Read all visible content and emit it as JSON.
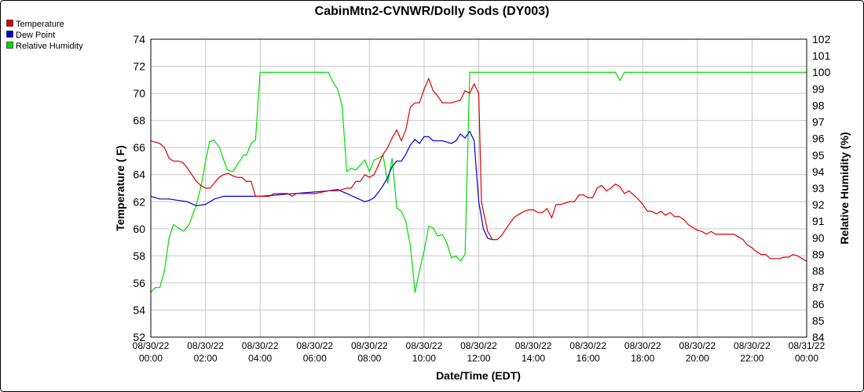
{
  "chart_data": {
    "type": "line",
    "title": "CabinMtn2-CVNWR/Dolly Sods (DY003)",
    "xlabel": "Date/Time (EDT)",
    "ylabel": "Temperature ( F)",
    "ylabel_right": "Relative Humidity (%)",
    "ylim": [
      52,
      74
    ],
    "ylim_right": [
      84,
      102
    ],
    "xlim_hours": [
      0,
      24
    ],
    "grid": true,
    "legend_position": "top-left",
    "yticks": [
      "52",
      "54",
      "56",
      "58",
      "60",
      "62",
      "64",
      "66",
      "68",
      "70",
      "72",
      "74"
    ],
    "yticks_right": [
      "84",
      "85",
      "86",
      "87",
      "88",
      "89",
      "90",
      "91",
      "92",
      "93",
      "94",
      "95",
      "96",
      "97",
      "98",
      "99",
      "100",
      "101",
      "102"
    ],
    "xticks": [
      {
        "hour": 0,
        "date": "08/30/22",
        "time": "00:00"
      },
      {
        "hour": 2,
        "date": "08/30/22",
        "time": "02:00"
      },
      {
        "hour": 4,
        "date": "08/30/22",
        "time": "04:00"
      },
      {
        "hour": 6,
        "date": "08/30/22",
        "time": "06:00"
      },
      {
        "hour": 8,
        "date": "08/30/22",
        "time": "08:00"
      },
      {
        "hour": 10,
        "date": "08/30/22",
        "time": "10:00"
      },
      {
        "hour": 12,
        "date": "08/30/22",
        "time": "12:00"
      },
      {
        "hour": 14,
        "date": "08/30/22",
        "time": "14:00"
      },
      {
        "hour": 16,
        "date": "08/30/22",
        "time": "16:00"
      },
      {
        "hour": 18,
        "date": "08/30/22",
        "time": "18:00"
      },
      {
        "hour": 20,
        "date": "08/30/22",
        "time": "20:00"
      },
      {
        "hour": 22,
        "date": "08/30/22",
        "time": "22:00"
      },
      {
        "hour": 24,
        "date": "08/31/22",
        "time": "00:00"
      }
    ],
    "series": [
      {
        "name": "Relative Humidity",
        "color": "#00dd00",
        "axis": "right",
        "points": [
          [
            0,
            86.7
          ],
          [
            0.17,
            87
          ],
          [
            0.33,
            87
          ],
          [
            0.5,
            88
          ],
          [
            0.67,
            90
          ],
          [
            0.83,
            90.8
          ],
          [
            1,
            90.6
          ],
          [
            1.2,
            90.4
          ],
          [
            1.4,
            90.8
          ],
          [
            1.67,
            92
          ],
          [
            1.85,
            93.2
          ],
          [
            2,
            94.6
          ],
          [
            2.15,
            95.8
          ],
          [
            2.3,
            95.9
          ],
          [
            2.5,
            95.5
          ],
          [
            2.67,
            94.7
          ],
          [
            2.8,
            94.1
          ],
          [
            3,
            94.0
          ],
          [
            3.2,
            94.5
          ],
          [
            3.4,
            95.0
          ],
          [
            3.5,
            95.0
          ],
          [
            3.67,
            95.7
          ],
          [
            3.83,
            95.9
          ],
          [
            4,
            100
          ],
          [
            6.5,
            100
          ],
          [
            6.67,
            99.4
          ],
          [
            6.83,
            99.0
          ],
          [
            7.0,
            98.0
          ],
          [
            7.17,
            94.0
          ],
          [
            7.33,
            94.2
          ],
          [
            7.5,
            94.1
          ],
          [
            7.67,
            94.4
          ],
          [
            7.83,
            94.7
          ],
          [
            8.0,
            94.0
          ],
          [
            8.17,
            94.7
          ],
          [
            8.33,
            94.8
          ],
          [
            8.5,
            95.0
          ],
          [
            8.67,
            93.3
          ],
          [
            8.83,
            94.8
          ],
          [
            9.0,
            91.8
          ],
          [
            9.17,
            91.6
          ],
          [
            9.33,
            91.0
          ],
          [
            9.5,
            89.5
          ],
          [
            9.67,
            86.7
          ],
          [
            9.83,
            88
          ],
          [
            10.0,
            89.2
          ],
          [
            10.17,
            90.7
          ],
          [
            10.33,
            90.6
          ],
          [
            10.5,
            90.1
          ],
          [
            10.67,
            90.2
          ],
          [
            10.83,
            89.7
          ],
          [
            11.0,
            88.8
          ],
          [
            11.17,
            88.9
          ],
          [
            11.33,
            88.6
          ],
          [
            11.5,
            89
          ],
          [
            11.67,
            100
          ],
          [
            17.0,
            100
          ],
          [
            17.17,
            99.5
          ],
          [
            17.33,
            100
          ],
          [
            24,
            100
          ]
        ]
      },
      {
        "name": "Dew Point",
        "color": "#0000dd",
        "axis": "left",
        "points": [
          [
            0,
            62.4
          ],
          [
            0.33,
            62.2
          ],
          [
            0.67,
            62.2
          ],
          [
            1,
            62.1
          ],
          [
            1.33,
            62.0
          ],
          [
            1.67,
            61.7
          ],
          [
            2,
            61.8
          ],
          [
            2.33,
            62.2
          ],
          [
            2.67,
            62.4
          ],
          [
            3,
            62.4
          ],
          [
            3.33,
            62.4
          ],
          [
            3.67,
            62.4
          ],
          [
            4,
            62.4
          ],
          [
            6.5,
            62.8
          ],
          [
            6.83,
            62.9
          ],
          [
            7.17,
            62.6
          ],
          [
            7.5,
            62.3
          ],
          [
            7.83,
            62.0
          ],
          [
            8.0,
            62.1
          ],
          [
            8.17,
            62.3
          ],
          [
            8.33,
            62.7
          ],
          [
            8.5,
            63.2
          ],
          [
            8.67,
            63.8
          ],
          [
            8.83,
            64.6
          ],
          [
            9.0,
            65.0
          ],
          [
            9.17,
            65.0
          ],
          [
            9.33,
            65.5
          ],
          [
            9.5,
            66.2
          ],
          [
            9.67,
            66.6
          ],
          [
            9.83,
            66.3
          ],
          [
            10.0,
            66.8
          ],
          [
            10.17,
            66.8
          ],
          [
            10.33,
            66.5
          ],
          [
            10.67,
            66.5
          ],
          [
            11.0,
            66.3
          ],
          [
            11.17,
            66.5
          ],
          [
            11.33,
            67.0
          ],
          [
            11.5,
            66.7
          ],
          [
            11.67,
            67.2
          ],
          [
            11.83,
            66.5
          ],
          [
            12.0,
            62.0
          ],
          [
            12.17,
            60.0
          ],
          [
            12.33,
            59.3
          ],
          [
            12.5,
            59.2
          ]
        ]
      },
      {
        "name": "Temperature",
        "color": "#dd0000",
        "axis": "left",
        "points": [
          [
            0,
            66.5
          ],
          [
            0.33,
            66.3
          ],
          [
            0.5,
            66.0
          ],
          [
            0.67,
            65.2
          ],
          [
            0.83,
            65.0
          ],
          [
            1,
            65.0
          ],
          [
            1.17,
            64.9
          ],
          [
            1.33,
            64.5
          ],
          [
            1.5,
            64.0
          ],
          [
            1.67,
            63.5
          ],
          [
            1.83,
            63.2
          ],
          [
            2,
            63.0
          ],
          [
            2.17,
            63.0
          ],
          [
            2.33,
            63.4
          ],
          [
            2.5,
            63.8
          ],
          [
            2.67,
            64.0
          ],
          [
            2.83,
            64.1
          ],
          [
            3,
            63.9
          ],
          [
            3.17,
            63.8
          ],
          [
            3.33,
            63.8
          ],
          [
            3.5,
            63.5
          ],
          [
            3.67,
            63.5
          ],
          [
            3.83,
            62.4
          ],
          [
            4,
            62.4
          ],
          [
            4.33,
            62.4
          ],
          [
            4.5,
            62.6
          ],
          [
            5,
            62.6
          ],
          [
            5.17,
            62.4
          ],
          [
            5.33,
            62.6
          ],
          [
            6,
            62.6
          ],
          [
            6.5,
            62.8
          ],
          [
            6.83,
            62.8
          ],
          [
            7,
            62.9
          ],
          [
            7.17,
            63.0
          ],
          [
            7.33,
            63.0
          ],
          [
            7.5,
            63.5
          ],
          [
            7.67,
            63.5
          ],
          [
            7.83,
            64.0
          ],
          [
            8.0,
            63.8
          ],
          [
            8.17,
            64.0
          ],
          [
            8.33,
            64.7
          ],
          [
            8.5,
            65.5
          ],
          [
            8.67,
            66.0
          ],
          [
            8.83,
            66.7
          ],
          [
            9.0,
            67.3
          ],
          [
            9.17,
            66.5
          ],
          [
            9.33,
            67.3
          ],
          [
            9.5,
            69.0
          ],
          [
            9.67,
            69.3
          ],
          [
            9.83,
            69.3
          ],
          [
            10.0,
            70.3
          ],
          [
            10.17,
            71.1
          ],
          [
            10.33,
            70.2
          ],
          [
            10.5,
            69.8
          ],
          [
            10.67,
            69.3
          ],
          [
            10.83,
            69.3
          ],
          [
            11.0,
            69.3
          ],
          [
            11.17,
            69.4
          ],
          [
            11.33,
            69.5
          ],
          [
            11.5,
            70.2
          ],
          [
            11.67,
            70.0
          ],
          [
            11.83,
            70.7
          ],
          [
            12.0,
            70.0
          ],
          [
            12.1,
            62.0
          ],
          [
            12.2,
            61.0
          ],
          [
            12.33,
            59.8
          ],
          [
            12.5,
            59.2
          ],
          [
            12.67,
            59.2
          ],
          [
            12.83,
            59.5
          ],
          [
            13.0,
            60.0
          ],
          [
            13.17,
            60.5
          ],
          [
            13.33,
            60.9
          ],
          [
            13.5,
            61.1
          ],
          [
            13.67,
            61.3
          ],
          [
            13.83,
            61.4
          ],
          [
            14.0,
            61.4
          ],
          [
            14.17,
            61.2
          ],
          [
            14.33,
            61.2
          ],
          [
            14.5,
            61.5
          ],
          [
            14.67,
            60.8
          ],
          [
            14.83,
            61.8
          ],
          [
            15.0,
            61.8
          ],
          [
            15.17,
            61.9
          ],
          [
            15.33,
            62.0
          ],
          [
            15.5,
            62.0
          ],
          [
            15.67,
            62.5
          ],
          [
            15.83,
            62.5
          ],
          [
            16.0,
            62.3
          ],
          [
            16.17,
            62.3
          ],
          [
            16.33,
            63.0
          ],
          [
            16.5,
            63.2
          ],
          [
            16.67,
            62.8
          ],
          [
            16.83,
            63.0
          ],
          [
            17.0,
            63.3
          ],
          [
            17.17,
            63.1
          ],
          [
            17.33,
            62.6
          ],
          [
            17.5,
            62.8
          ],
          [
            17.67,
            62.5
          ],
          [
            17.83,
            62.2
          ],
          [
            18.0,
            61.8
          ],
          [
            18.17,
            61.3
          ],
          [
            18.33,
            61.3
          ],
          [
            18.5,
            61.1
          ],
          [
            18.67,
            61.3
          ],
          [
            18.83,
            61.0
          ],
          [
            19.0,
            61.2
          ],
          [
            19.17,
            60.9
          ],
          [
            19.33,
            60.9
          ],
          [
            19.5,
            60.7
          ],
          [
            19.67,
            60.3
          ],
          [
            19.83,
            60.1
          ],
          [
            20.0,
            59.9
          ],
          [
            20.17,
            59.8
          ],
          [
            20.33,
            59.6
          ],
          [
            20.5,
            59.8
          ],
          [
            20.67,
            59.6
          ],
          [
            20.83,
            59.6
          ],
          [
            21.0,
            59.6
          ],
          [
            21.17,
            59.6
          ],
          [
            21.33,
            59.6
          ],
          [
            21.5,
            59.4
          ],
          [
            21.67,
            59.2
          ],
          [
            21.83,
            58.8
          ],
          [
            22.0,
            58.6
          ],
          [
            22.17,
            58.3
          ],
          [
            22.33,
            58.1
          ],
          [
            22.5,
            58.1
          ],
          [
            22.67,
            57.8
          ],
          [
            22.83,
            57.8
          ],
          [
            23.0,
            57.8
          ],
          [
            23.17,
            57.9
          ],
          [
            23.33,
            57.9
          ],
          [
            23.5,
            58.1
          ],
          [
            23.67,
            58.0
          ],
          [
            23.83,
            57.8
          ],
          [
            24.0,
            57.6
          ]
        ]
      }
    ],
    "legend": [
      {
        "label": "Temperature",
        "color": "#dd0000"
      },
      {
        "label": "Dew Point",
        "color": "#0000dd"
      },
      {
        "label": "Relative Humidity",
        "color": "#00dd00"
      }
    ]
  }
}
